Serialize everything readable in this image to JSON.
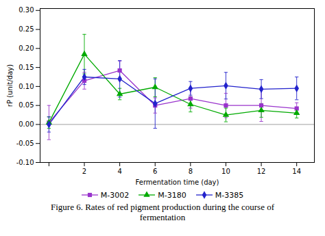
{
  "chart_data": {
    "type": "line",
    "xlabel": "Fermentation time (day)",
    "ylabel": "rP (unit/day)",
    "caption": [
      "Figure 6. Rates of red pigment production during the course of",
      "fermentation"
    ],
    "x": [
      0,
      2,
      4,
      6,
      8,
      10,
      12,
      14
    ],
    "xlim": [
      -0.5,
      15
    ],
    "xticks": [
      {
        "value": 0,
        "label": ""
      },
      2,
      4,
      6,
      8,
      10,
      12,
      14
    ],
    "ylim": [
      -0.1,
      0.305
    ],
    "yticks": [
      {
        "value": -0.1,
        "label": "-0.10"
      },
      -0.05,
      {
        "value": 0.0,
        "label": "0.00"
      },
      0.05,
      {
        "value": 0.1,
        "label": "0.10"
      },
      0.15,
      {
        "value": 0.2,
        "label": "0.20"
      },
      0.25,
      {
        "value": 0.3,
        "label": "0.30"
      }
    ],
    "grid": false,
    "legend": "bottom",
    "hlines": [
      0
    ],
    "series": [
      {
        "name": "M-3002",
        "color": "#9933CC",
        "marker": "square",
        "values": [
          0.005,
          0.115,
          0.142,
          0.05,
          0.068,
          0.05,
          0.05,
          0.042
        ],
        "errors": [
          0.045,
          0.022,
          0.025,
          0.02,
          0.025,
          0.032,
          0.042,
          0.015
        ]
      },
      {
        "name": "M-3180",
        "color": "#00AA00",
        "marker": "triangle",
        "values": [
          0.005,
          0.185,
          0.08,
          0.098,
          0.053,
          0.025,
          0.037,
          0.03
        ],
        "errors": [
          0.015,
          0.052,
          0.015,
          0.025,
          0.02,
          0.018,
          0.018,
          0.013
        ]
      },
      {
        "name": "M-3385",
        "color": "#2222CC",
        "marker": "diamond",
        "values": [
          0.0,
          0.125,
          0.12,
          0.055,
          0.095,
          0.102,
          0.093,
          0.095
        ],
        "errors": [
          0.02,
          0.02,
          0.048,
          0.065,
          0.018,
          0.035,
          0.025,
          0.03
        ]
      }
    ]
  }
}
